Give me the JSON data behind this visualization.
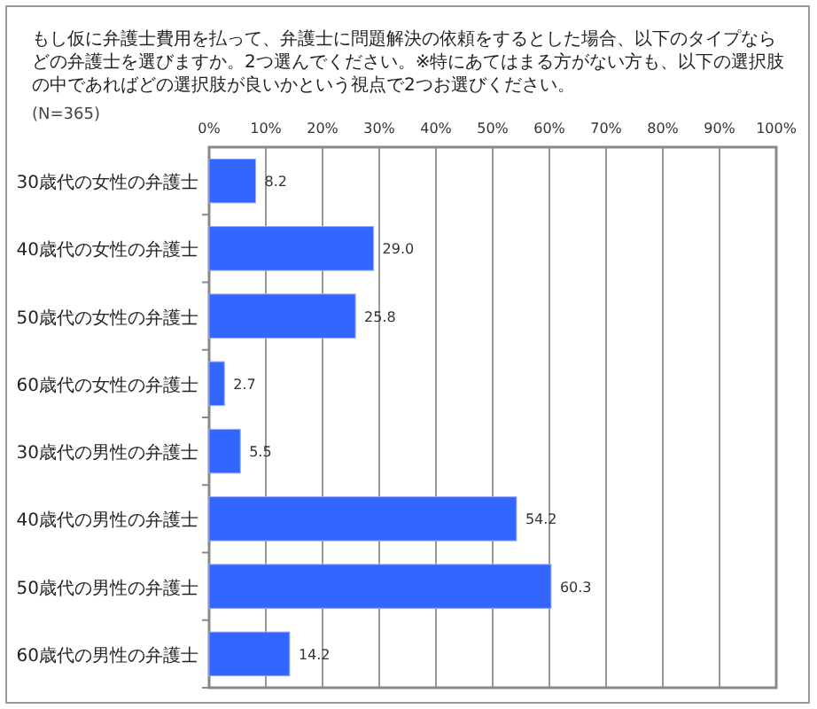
{
  "chart_data": {
    "type": "bar",
    "orientation": "horizontal",
    "title": "もし仮に弁護士費用を払って、弁護士に問題解決の依頼をするとした場合、以下のタイプならどの弁護士を選びますか。2つ選んでください。※特にあてはまる方がない方も、以下の選択肢の中であればどの選択肢が良いかという視点で2つお選びください。",
    "annotations": [
      "(N=365)"
    ],
    "categories": [
      "30歳代の女性の弁護士",
      "40歳代の女性の弁護士",
      "50歳代の女性の弁護士",
      "60歳代の女性の弁護士",
      "30歳代の男性の弁護士",
      "40歳代の男性の弁護士",
      "50歳代の男性の弁護士",
      "60歳代の男性の弁護士"
    ],
    "values": [
      8.2,
      29.0,
      25.8,
      2.7,
      5.5,
      54.2,
      60.3,
      14.2
    ],
    "value_labels": [
      "8.2",
      "29.0",
      "25.8",
      "2.7",
      "5.5",
      "54.2",
      "60.3",
      "14.2"
    ],
    "color": "#3366ff",
    "xlim": [
      0,
      100
    ],
    "xticks": [
      {
        "value": 0,
        "label": "0%"
      },
      {
        "value": 10,
        "label": "10%"
      },
      {
        "value": 20,
        "label": "20%"
      },
      {
        "value": 30,
        "label": "30%"
      },
      {
        "value": 40,
        "label": "40%"
      },
      {
        "value": 50,
        "label": "50%"
      },
      {
        "value": 60,
        "label": "60%"
      },
      {
        "value": 70,
        "label": "70%"
      },
      {
        "value": 80,
        "label": "80%"
      },
      {
        "value": 90,
        "label": "90%"
      },
      {
        "value": 100,
        "label": "100%"
      }
    ],
    "grid": "x"
  }
}
